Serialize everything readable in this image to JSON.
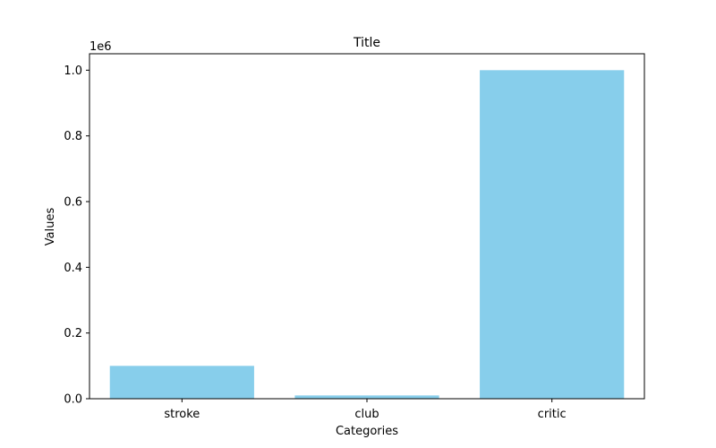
{
  "chart_data": {
    "type": "bar",
    "title": "Title",
    "xlabel": "Categories",
    "ylabel": "Values",
    "categories": [
      "stroke",
      "club",
      "critic"
    ],
    "values": [
      100000,
      10000,
      1000000
    ],
    "ylim": [
      0,
      1050000
    ],
    "yticks": [
      0,
      200000,
      400000,
      600000,
      800000,
      1000000
    ],
    "ytick_labels": [
      "0.0",
      "0.2",
      "0.4",
      "0.6",
      "0.8",
      "1.0"
    ],
    "y_offset_label": "1e6",
    "bar_color": "#87ceeb",
    "grid": false,
    "legend": "none"
  }
}
